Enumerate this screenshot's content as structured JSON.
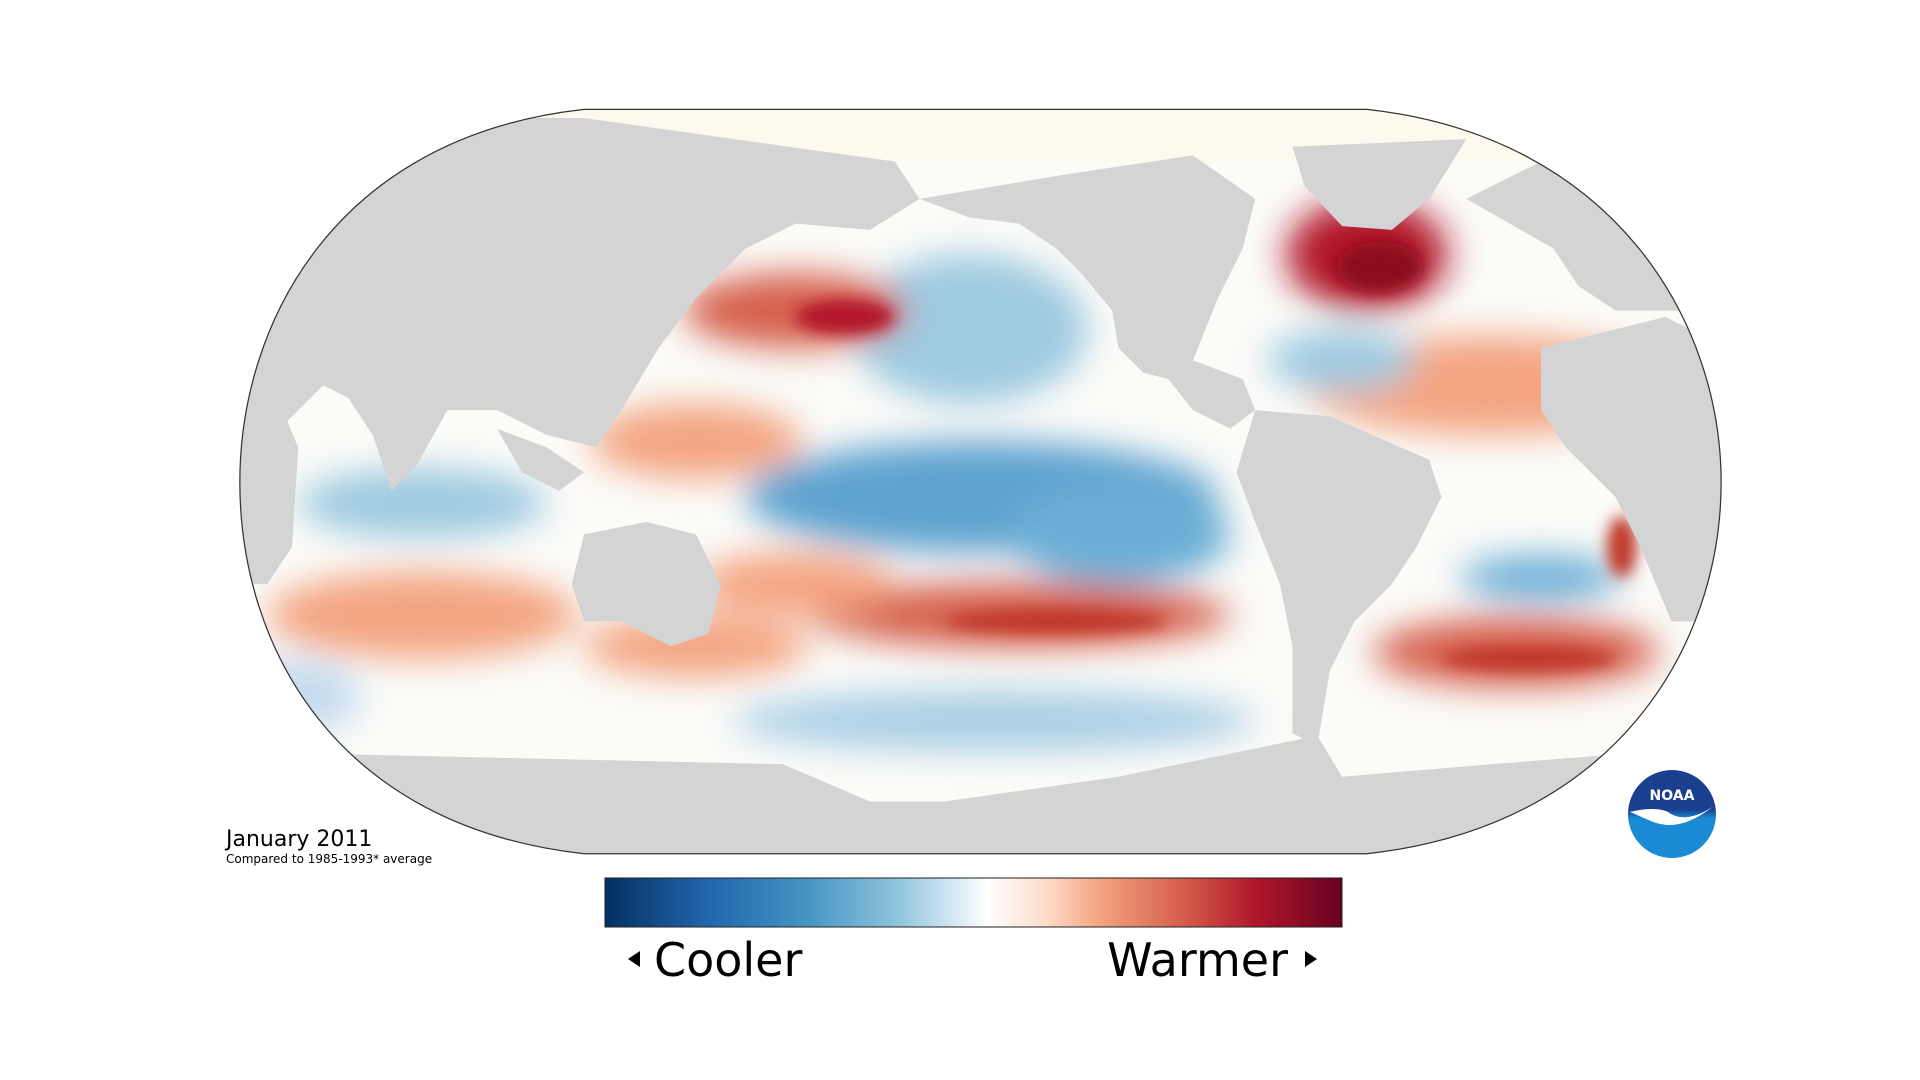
{
  "title": "January 2011",
  "subtitle": "Compared to 1985-1993* average",
  "legend": {
    "low": "Cooler",
    "high": "Warmer"
  },
  "logo": "NOAA"
}
